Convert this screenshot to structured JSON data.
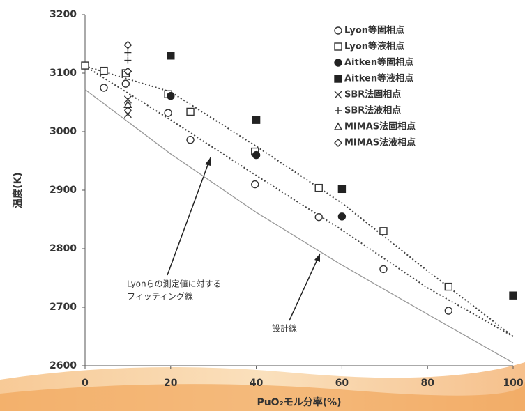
{
  "chart_data": {
    "type": "scatter",
    "ylabel": "温度(K)",
    "xlabel": "PuO₂モル分率(%)",
    "xlim": [
      0,
      100
    ],
    "xticks": [
      0,
      20,
      40,
      60,
      80,
      100
    ],
    "ylim": [
      2600,
      3200
    ],
    "yticks": [
      2600,
      2700,
      2800,
      2900,
      3000,
      3100,
      3200
    ],
    "grid": false,
    "legend": "upper right",
    "series": [
      {
        "name": "Lyon等固相点",
        "marker": "circle-open",
        "color": "#333333",
        "x": [
          4.4,
          9.5,
          19.4,
          24.6,
          39.7,
          54.6,
          69.7,
          84.9
        ],
        "values": [
          3075,
          3082,
          3032,
          2986,
          2910,
          2854,
          2765,
          2694
        ]
      },
      {
        "name": "Lyon等液相点",
        "marker": "square-open",
        "color": "#333333",
        "x": [
          0,
          4.4,
          9.5,
          19.4,
          24.6,
          39.7,
          54.6,
          69.7,
          84.9
        ],
        "values": [
          3113,
          3104,
          3100,
          3064,
          3034,
          2966,
          2904,
          2830,
          2735
        ]
      },
      {
        "name": "Aitken等固相点",
        "marker": "circle-filled",
        "color": "#222222",
        "x": [
          20,
          40,
          60
        ],
        "values": [
          3061,
          2960,
          2855
        ]
      },
      {
        "name": "Aitken等液相点",
        "marker": "square-filled",
        "color": "#222222",
        "x": [
          20,
          40,
          60,
          100
        ],
        "values": [
          3130,
          3020,
          2902,
          2720
        ]
      },
      {
        "name": "SBR法固相点",
        "marker": "x",
        "color": "#333333",
        "x": [
          10,
          10,
          10
        ],
        "values": [
          3030,
          3042,
          3055
        ]
      },
      {
        "name": "SBR法液相点",
        "marker": "plus",
        "color": "#333333",
        "x": [
          10,
          10
        ],
        "values": [
          3135,
          3122
        ]
      },
      {
        "name": "MIMAS法固相点",
        "marker": "triangle-open",
        "color": "#333333",
        "x": [
          10
        ],
        "values": [
          3046
        ]
      },
      {
        "name": "MIMAS法液相点",
        "marker": "diamond-open",
        "color": "#333333",
        "x": [
          10,
          10
        ],
        "values": [
          3148,
          3103
        ]
      }
    ],
    "lines": [
      {
        "style": "dotted",
        "color": "#444444",
        "x": [
          0,
          20,
          40,
          60,
          80,
          100
        ],
        "values": [
          3112,
          3020,
          2925,
          2832,
          2733,
          2650
        ]
      },
      {
        "style": "dotted",
        "color": "#444444",
        "x": [
          0,
          20,
          40,
          60,
          80,
          100
        ],
        "values": [
          3112,
          3068,
          2975,
          2878,
          2762,
          2650
        ]
      },
      {
        "style": "solid",
        "color": "#999999",
        "x": [
          0,
          20,
          40,
          60,
          80,
          100
        ],
        "values": [
          3072,
          2962,
          2862,
          2772,
          2688,
          2605
        ]
      }
    ],
    "annotations": [
      "Lyonらの測定値に対する",
      "フィッティング線",
      "設計線"
    ]
  }
}
